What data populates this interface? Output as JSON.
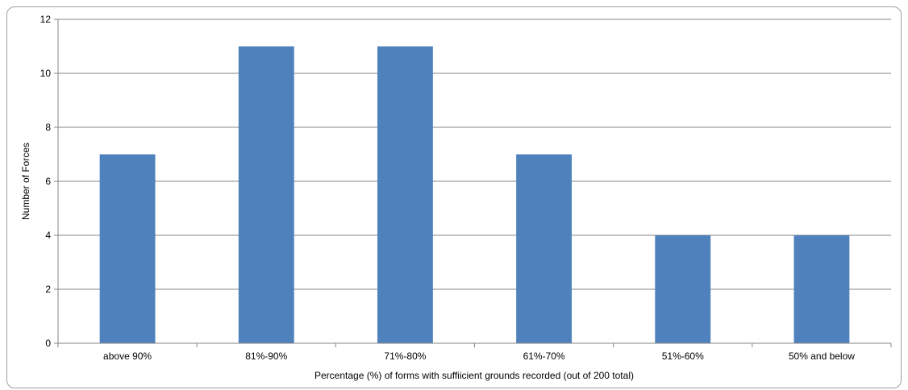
{
  "chart_data": {
    "type": "bar",
    "title": "",
    "xlabel": "Percentage (%) of forms with suffiicient grounds recorded (out of 200 total)",
    "ylabel": "Number of Forces",
    "categories": [
      "above 90%",
      "81%-90%",
      "71%-80%",
      "61%-70%",
      "51%-60%",
      "50% and below"
    ],
    "values": [
      7,
      11,
      11,
      7,
      4,
      4
    ],
    "ylim": [
      0,
      12
    ],
    "yticks": [
      "0",
      "2",
      "4",
      "6",
      "8",
      "10",
      "12"
    ],
    "grid": true,
    "legend": "none",
    "bar_color": "#4f81bd",
    "grid_color": "#868686"
  }
}
